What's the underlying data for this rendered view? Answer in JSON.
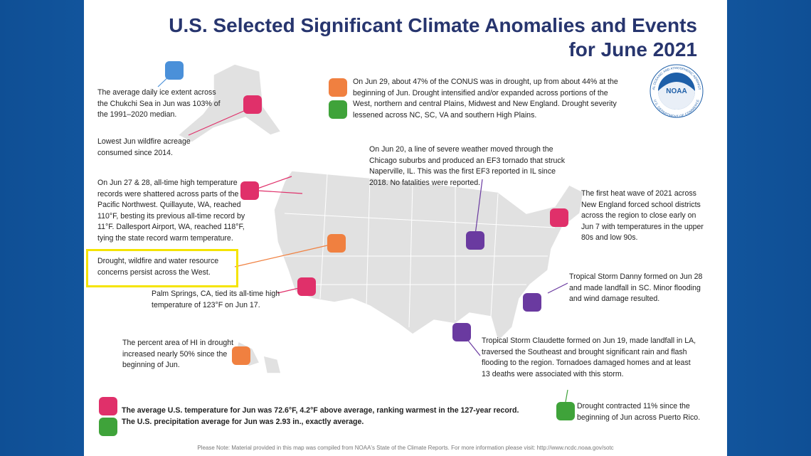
{
  "header": {
    "title_lines": [
      "U.S. Selected Significant Climate Anomalies and Events",
      "for June 2021"
    ]
  },
  "logo": {
    "name": "NOAA",
    "ring_top": "NATIONAL OCEANIC AND ATMOSPHERIC ADMINISTRATION",
    "ring_bottom": "U.S. DEPARTMENT OF COMMERCE"
  },
  "annotations": [
    {
      "lines": [
        "The average daily ice extent across",
        "the Chukchi Sea in Jun was 103% of",
        "the 1991–2020 median."
      ]
    },
    {
      "lines": [
        "Lowest Jun wildfire acreage",
        "consumed since 2014."
      ]
    },
    {
      "lines": [
        "On Jun 27 & 28, all-time high temperature",
        "records were shattered across parts of the",
        "Pacific Northwest. Quillayute, WA, reached",
        "110°F, besting its previous all-time record by",
        "11°F. Dallesport Airport, WA, reached 118°F,",
        "tying the state record warm temperature."
      ]
    },
    {
      "lines": [
        "Drought, wildfire and water resource",
        "concerns persist across the West."
      ]
    },
    {
      "lines": [
        "Palm Springs, CA, tied its all-time high",
        "temperature of 123°F on Jun 17."
      ]
    },
    {
      "lines": [
        "The percent area of HI in drought",
        "increased nearly 50% since the",
        "beginning of Jun."
      ]
    },
    {
      "lines": [
        "On Jun 29, about 47% of the CONUS was in drought, up from about 44% at the",
        "beginning of Jun. Drought intensified and/or expanded across portions of the",
        "West, northern and central Plains, Midwest and New England. Drought severity",
        "lessened across NC, SC, VA and southern High Plains."
      ]
    },
    {
      "lines": [
        "On Jun 20, a line of severe weather moved through the",
        "Chicago suburbs and produced an EF3 tornado that struck",
        "Naperville, IL. This was the first EF3 reported in IL since",
        "2018. No fatalities were reported."
      ]
    },
    {
      "lines": [
        "The first heat wave of 2021 across",
        "New England forced school districts",
        "across the region to close early on",
        "Jun 7 with temperatures in the upper",
        "80s and low 90s."
      ]
    },
    {
      "lines": [
        "Tropical Storm Danny formed on Jun 28",
        "and made landfall in SC. Minor flooding",
        "and wind damage resulted."
      ]
    },
    {
      "lines": [
        "Tropical Storm Claudette formed on Jun 19, made landfall in LA,",
        "traversed the Southeast and brought significant rain and flash",
        "flooding to the region. Tornadoes damaged homes and at least",
        "13 deaths were associated with this storm."
      ]
    },
    {
      "lines": [
        "Drought contracted 11% since the",
        "beginning of Jun across Puerto Rico."
      ]
    }
  ],
  "summary": [
    "The average U.S. temperature for Jun was 72.6°F, 4.2°F above average, ranking warmest in the 127-year record.",
    "The U.S. precipitation average for Jun was 2.93 in., exactly average."
  ],
  "footer": "Please Note: Material provided in this map was compiled from NOAA's State of the Climate Reports. For more information please visit: http://www.ncdc.noaa.gov/sotc"
}
